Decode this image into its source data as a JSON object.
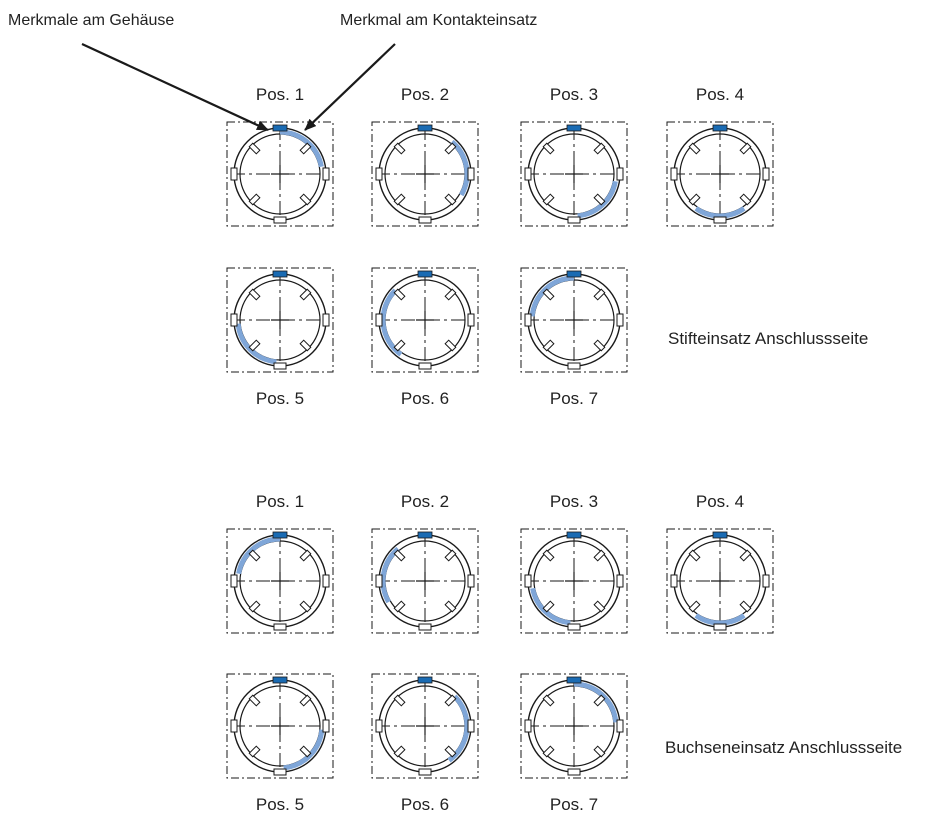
{
  "callouts": {
    "housing": "Merkmale am Gehäuse",
    "insert": "Merkmal am Kontakteinsatz"
  },
  "colors": {
    "marker": "#1a6bb3",
    "arc": "#7fa6d8",
    "line": "#1a1a1a"
  },
  "groups": [
    {
      "caption": "Stifteinsatz Anschlussseite",
      "positions": [
        {
          "label": "Pos. 1",
          "arc_from_deg": 0,
          "arc_to_deg": 80
        },
        {
          "label": "Pos. 2",
          "arc_from_deg": 40,
          "arc_to_deg": 120
        },
        {
          "label": "Pos. 3",
          "arc_from_deg": 100,
          "arc_to_deg": 175
        },
        {
          "label": "Pos. 4",
          "arc_from_deg": 145,
          "arc_to_deg": 215
        },
        {
          "label": "Pos. 5",
          "arc_from_deg": 185,
          "arc_to_deg": 265
        },
        {
          "label": "Pos. 6",
          "arc_from_deg": 215,
          "arc_to_deg": 315
        },
        {
          "label": "Pos. 7",
          "arc_from_deg": 275,
          "arc_to_deg": 360
        }
      ]
    },
    {
      "caption": "Buchseneinsatz Anschlussseite",
      "positions": [
        {
          "label": "Pos. 1",
          "arc_from_deg": 280,
          "arc_to_deg": 360
        },
        {
          "label": "Pos. 2",
          "arc_from_deg": 240,
          "arc_to_deg": 320
        },
        {
          "label": "Pos. 3",
          "arc_from_deg": 185,
          "arc_to_deg": 260
        },
        {
          "label": "Pos. 4",
          "arc_from_deg": 145,
          "arc_to_deg": 215
        },
        {
          "label": "Pos. 5",
          "arc_from_deg": 95,
          "arc_to_deg": 175
        },
        {
          "label": "Pos. 6",
          "arc_from_deg": 45,
          "arc_to_deg": 145
        },
        {
          "label": "Pos. 7",
          "arc_from_deg": 0,
          "arc_to_deg": 85
        }
      ]
    }
  ]
}
